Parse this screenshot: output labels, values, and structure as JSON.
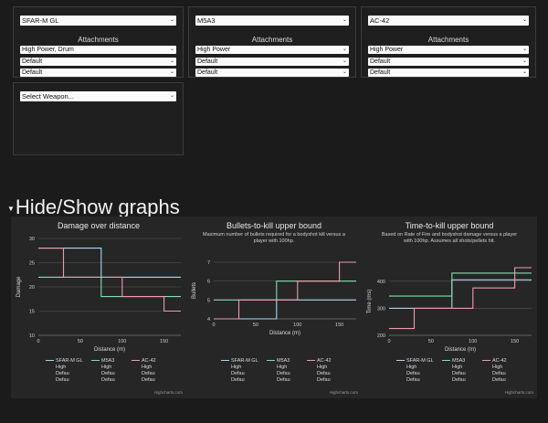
{
  "loadouts": [
    {
      "weapon": "SFAR-M GL",
      "attachments_label": "Attachments",
      "slots": [
        "High Power, Drum",
        "Default",
        "Default"
      ]
    },
    {
      "weapon": "M5A3",
      "attachments_label": "Attachments",
      "slots": [
        "High Power",
        "Default",
        "Default"
      ]
    },
    {
      "weapon": "AC-42",
      "attachments_label": "Attachments",
      "slots": [
        "High Power",
        "Default",
        "Default"
      ]
    }
  ],
  "empty_slot": {
    "placeholder": "Select Weapon..."
  },
  "toggle_label": "Hide/Show graphs",
  "colors": {
    "SFAR-M GL": "#a6d8f0",
    "M5A3": "#7fe1b2",
    "AC-42": "#ef9aaa"
  },
  "chart_data": [
    {
      "type": "line",
      "title": "Damage over distance",
      "subtitle": "",
      "xlabel": "Distance (m)",
      "ylabel": "Damage",
      "xlim": [
        0,
        170
      ],
      "ylim": [
        10,
        30
      ],
      "xticks": [
        0,
        50,
        100,
        150
      ],
      "yticks": [
        10,
        15,
        20,
        25,
        30
      ],
      "series": [
        {
          "name": "SFAR-M GL",
          "legend": [
            "SFAR-M GL",
            "High",
            "Defau",
            "Defau"
          ],
          "x": [
            0,
            75,
            75,
            170
          ],
          "y": [
            28,
            28,
            22,
            22
          ]
        },
        {
          "name": "M5A3",
          "legend": [
            "M5A3",
            "High",
            "Defau",
            "Defau"
          ],
          "x": [
            0,
            75,
            75,
            170
          ],
          "y": [
            22,
            22,
            18,
            18
          ]
        },
        {
          "name": "AC-42",
          "legend": [
            "AC-42",
            "High",
            "Defau",
            "Defau"
          ],
          "x": [
            0,
            30,
            30,
            100,
            100,
            150,
            150,
            170
          ],
          "y": [
            28,
            28,
            22,
            22,
            18,
            18,
            15,
            15
          ]
        }
      ],
      "credit": "Highcharts.com"
    },
    {
      "type": "line",
      "title": "Bullets-to-kill upper bound",
      "subtitle": "Maximum number of bullets required for a bodyshot kill versus a player with 100hp.",
      "xlabel": "Distance (m)",
      "ylabel": "Bullets",
      "xlim": [
        0,
        170
      ],
      "ylim": [
        4,
        7
      ],
      "xticks": [
        0,
        50,
        100,
        150
      ],
      "yticks": [
        4,
        5,
        6,
        7
      ],
      "series": [
        {
          "name": "SFAR-M GL",
          "legend": [
            "SFAR-M GL",
            "High",
            "Defau",
            "Defau"
          ],
          "x": [
            0,
            75,
            75,
            170
          ],
          "y": [
            4,
            4,
            5,
            5
          ]
        },
        {
          "name": "M5A3",
          "legend": [
            "M5A3",
            "High",
            "Defau",
            "Defau"
          ],
          "x": [
            0,
            75,
            75,
            170
          ],
          "y": [
            5,
            5,
            6,
            6
          ]
        },
        {
          "name": "AC-42",
          "legend": [
            "AC-42",
            "High",
            "Defau",
            "Defau"
          ],
          "x": [
            0,
            30,
            30,
            100,
            100,
            150,
            150,
            170
          ],
          "y": [
            4,
            4,
            5,
            5,
            6,
            6,
            7,
            7
          ]
        }
      ],
      "credit": "Highcharts.com"
    },
    {
      "type": "line",
      "title": "Time-to-kill upper bound",
      "subtitle": "Based on Rate of Fire and bodyshot damage versus a player with 100hp. Assumes all shots/pellets hit.",
      "xlabel": "Distance (m)",
      "ylabel": "Time (ms)",
      "xlim": [
        0,
        170
      ],
      "ylim": [
        200,
        450
      ],
      "xticks": [
        0,
        50,
        100,
        150
      ],
      "yticks": [
        200,
        300,
        400
      ],
      "series": [
        {
          "name": "SFAR-M GL",
          "legend": [
            "SFAR-M GL",
            "High",
            "Defau",
            "Defau"
          ],
          "x": [
            0,
            75,
            75,
            170
          ],
          "y": [
            300,
            300,
            405,
            405
          ]
        },
        {
          "name": "M5A3",
          "legend": [
            "M5A3",
            "High",
            "Defau",
            "Defau"
          ],
          "x": [
            0,
            75,
            75,
            170
          ],
          "y": [
            345,
            345,
            430,
            430
          ]
        },
        {
          "name": "AC-42",
          "legend": [
            "AC-42",
            "High",
            "Defau",
            "Defau"
          ],
          "x": [
            0,
            30,
            30,
            100,
            100,
            150,
            150,
            170
          ],
          "y": [
            225,
            225,
            300,
            300,
            375,
            375,
            450,
            450
          ]
        }
      ],
      "credit": "Highcharts.com"
    }
  ]
}
